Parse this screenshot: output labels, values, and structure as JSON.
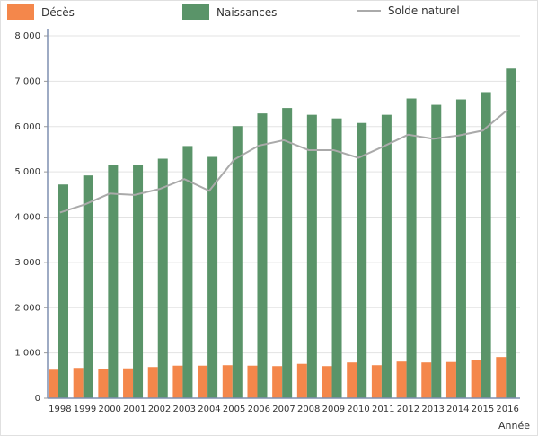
{
  "chart_data": {
    "type": "bar",
    "categories": [
      "1998",
      "1999",
      "2000",
      "2001",
      "2002",
      "2003",
      "2004",
      "2005",
      "2006",
      "2007",
      "2008",
      "2009",
      "2010",
      "2011",
      "2012",
      "2013",
      "2014",
      "2015",
      "2016"
    ],
    "series": [
      {
        "name": "Décès",
        "type": "bar",
        "color": "#f4874b",
        "values": [
          630,
          670,
          640,
          660,
          690,
          720,
          720,
          730,
          720,
          710,
          760,
          710,
          790,
          730,
          810,
          790,
          800,
          850,
          910
        ]
      },
      {
        "name": "Naissances",
        "type": "bar",
        "color": "#5a9469",
        "values": [
          4720,
          4920,
          5160,
          5160,
          5290,
          5570,
          5330,
          6010,
          6290,
          6410,
          6260,
          6180,
          6080,
          6260,
          6620,
          6480,
          6600,
          6760,
          7280
        ]
      },
      {
        "name": "Solde naturel",
        "type": "line",
        "color": "#aaaaaa",
        "values": [
          4100,
          4280,
          4520,
          4490,
          4620,
          4840,
          4580,
          5270,
          5580,
          5700,
          5480,
          5480,
          5310,
          5560,
          5820,
          5730,
          5800,
          5910,
          6370
        ]
      }
    ],
    "y_ticks": [
      "0",
      "1 000",
      "2 000",
      "3 000",
      "4 000",
      "5 000",
      "6 000",
      "7 000",
      "8 000"
    ],
    "ylim": [
      0,
      8000
    ],
    "xlabel": "Année",
    "ylabel": "",
    "grid": true,
    "legend_position": "top"
  }
}
